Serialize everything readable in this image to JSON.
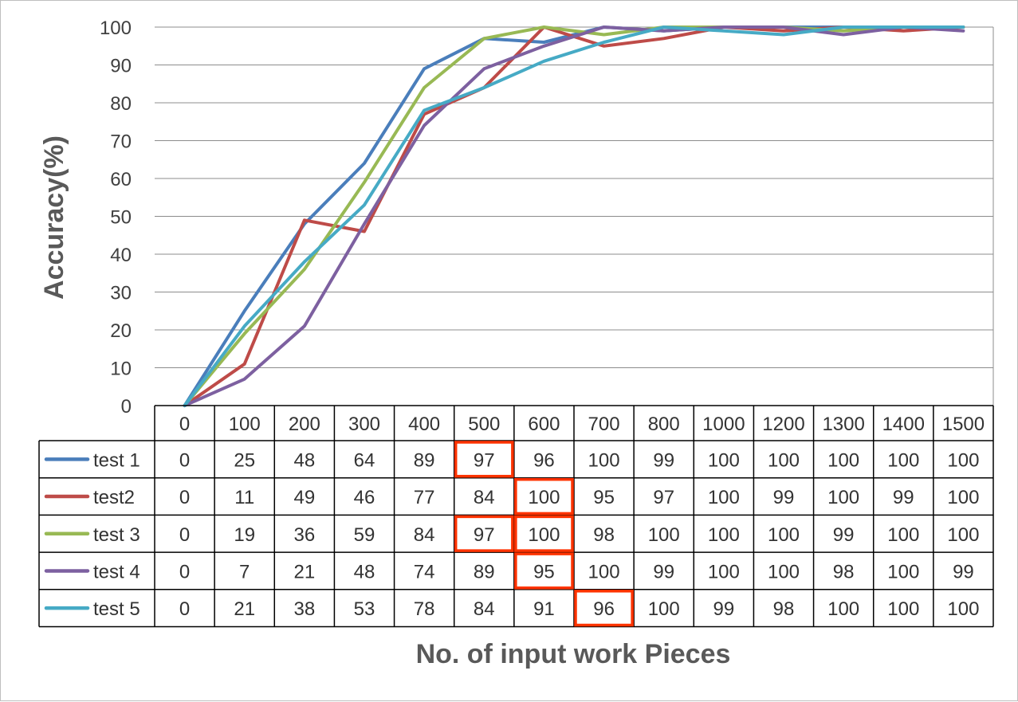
{
  "chart_data": {
    "type": "line",
    "xlabel": "No. of input work Pieces",
    "ylabel": "Accuracy(%)",
    "ylim": [
      0,
      100
    ],
    "yticks": [
      "0",
      "10",
      "20",
      "30",
      "40",
      "50",
      "60",
      "70",
      "80",
      "90",
      "100"
    ],
    "grid": true,
    "legend": "data-table",
    "categories": [
      "0",
      "100",
      "200",
      "300",
      "400",
      "500",
      "600",
      "700",
      "800",
      "1000",
      "1200",
      "1300",
      "1400",
      "1500"
    ],
    "series": [
      {
        "name": "test 1",
        "color": "#4a7ebb",
        "values": [
          0,
          25,
          48,
          64,
          89,
          97,
          96,
          100,
          99,
          100,
          100,
          100,
          100,
          100
        ]
      },
      {
        "name": "test2",
        "color": "#be4b48",
        "values": [
          0,
          11,
          49,
          46,
          77,
          84,
          100,
          95,
          97,
          100,
          99,
          100,
          99,
          100
        ]
      },
      {
        "name": "test 3",
        "color": "#98b954",
        "values": [
          0,
          19,
          36,
          59,
          84,
          97,
          100,
          98,
          100,
          100,
          100,
          99,
          100,
          100
        ]
      },
      {
        "name": "test 4",
        "color": "#7d60a0",
        "values": [
          0,
          7,
          21,
          48,
          74,
          89,
          95,
          100,
          99,
          100,
          100,
          98,
          100,
          99
        ]
      },
      {
        "name": "test 5",
        "color": "#46aac5",
        "values": [
          0,
          21,
          38,
          53,
          78,
          84,
          91,
          96,
          100,
          99,
          98,
          100,
          100,
          100
        ]
      }
    ],
    "highlighted_cells": [
      {
        "series": 0,
        "category": 5
      },
      {
        "series": 1,
        "category": 6
      },
      {
        "series": 2,
        "category": 5
      },
      {
        "series": 2,
        "category": 6
      },
      {
        "series": 3,
        "category": 6
      },
      {
        "series": 4,
        "category": 7
      }
    ],
    "highlight_color": "#ff3300"
  }
}
